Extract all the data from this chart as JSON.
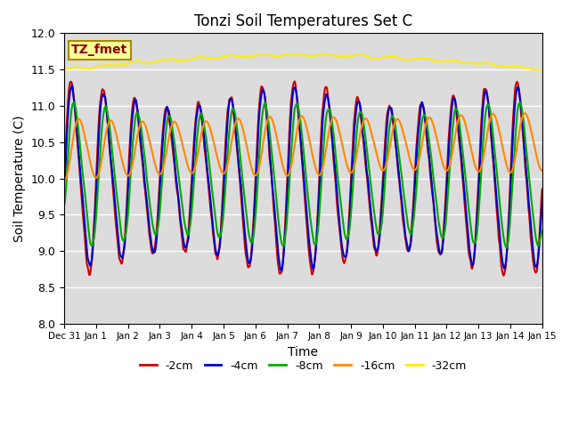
{
  "title": "Tonzi Soil Temperatures Set C",
  "xlabel": "Time",
  "ylabel": "Soil Temperature (C)",
  "ylim": [
    8.0,
    12.0
  ],
  "yticks": [
    8.0,
    8.5,
    9.0,
    9.5,
    10.0,
    10.5,
    11.0,
    11.5,
    12.0
  ],
  "bg_color": "#dcdcdc",
  "legend_label": "TZ_fmet",
  "legend_box_color": "#ffff99",
  "legend_box_edge": "#aa8800",
  "legend_text_color": "#8b0000",
  "series_labels": [
    "-2cm",
    "-4cm",
    "-8cm",
    "-16cm",
    "-32cm"
  ],
  "series_colors": [
    "#cc0000",
    "#0000cc",
    "#00aa00",
    "#ff8800",
    "#ffee00"
  ],
  "line_width": 1.5,
  "xticklabels": [
    "Dec 31",
    "Jan 1",
    "Jan 2",
    "Jan 3",
    "Jan 4",
    "Jan 5",
    "Jan 6",
    "Jan 7",
    "Jan 8",
    "Jan 9",
    "Jan 10",
    "Jan 11",
    "Jan 12",
    "Jan 13",
    "Jan 14",
    "Jan 15"
  ],
  "days": 15
}
